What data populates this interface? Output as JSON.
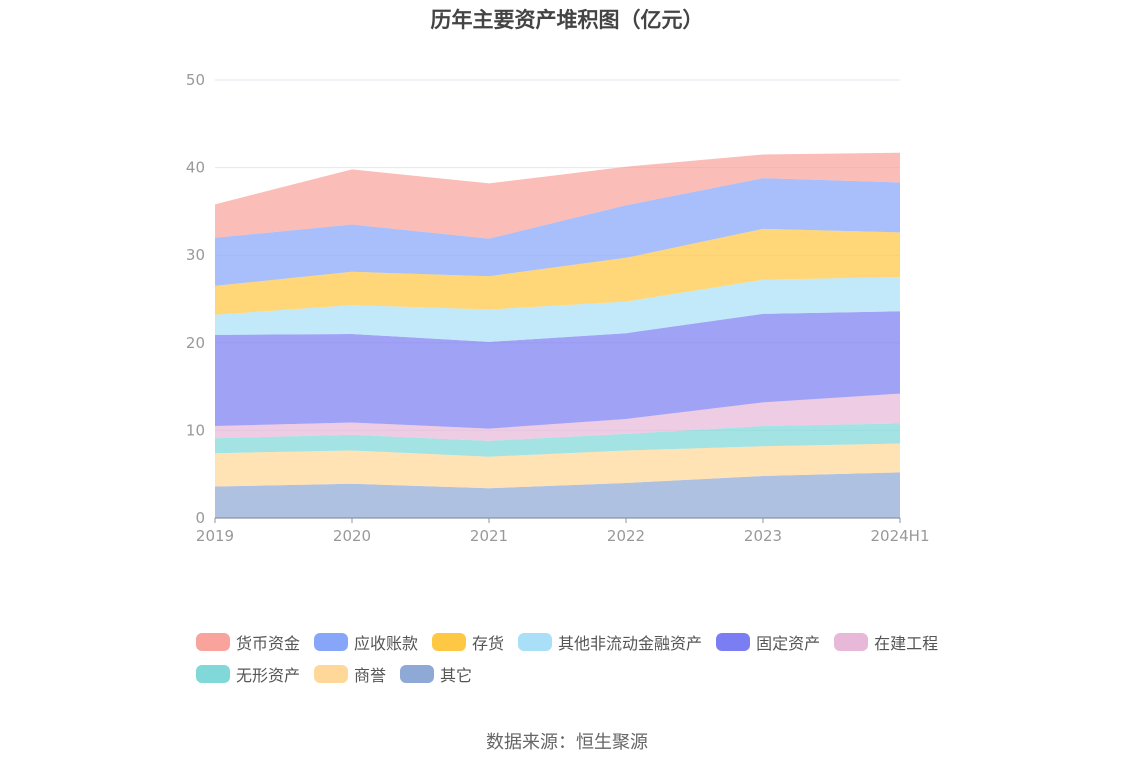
{
  "title": "历年主要资产堆积图（亿元）",
  "source": "数据来源：恒生聚源",
  "chart_data": {
    "type": "area",
    "stacked": true,
    "categories": [
      "2019",
      "2020",
      "2021",
      "2022",
      "2023",
      "2024H1"
    ],
    "ylim": [
      0,
      50
    ],
    "yticks": [
      0,
      10,
      20,
      30,
      40,
      50
    ],
    "grid": true,
    "legend_position": "bottom",
    "series": [
      {
        "name": "其它",
        "color": "#8fa9d6",
        "values": [
          3.6,
          3.9,
          3.4,
          4.0,
          4.8,
          5.2
        ]
      },
      {
        "name": "商誉",
        "color": "#ffd899",
        "values": [
          3.8,
          3.8,
          3.6,
          3.7,
          3.4,
          3.3
        ]
      },
      {
        "name": "无形资产",
        "color": "#80d8d8",
        "values": [
          1.7,
          1.8,
          1.8,
          1.9,
          2.3,
          2.3
        ]
      },
      {
        "name": "在建工程",
        "color": "#e8b8d8",
        "values": [
          1.4,
          1.4,
          1.4,
          1.7,
          2.7,
          3.4
        ]
      },
      {
        "name": "固定资产",
        "color": "#7b7ef2",
        "values": [
          10.4,
          10.1,
          9.9,
          9.8,
          10.1,
          9.4
        ]
      },
      {
        "name": "其他非流动金融资产",
        "color": "#a9e0f8",
        "values": [
          2.3,
          3.3,
          3.7,
          3.6,
          3.9,
          3.9
        ]
      },
      {
        "name": "存货",
        "color": "#ffc844",
        "values": [
          3.3,
          3.8,
          3.8,
          5.0,
          5.8,
          5.1
        ]
      },
      {
        "name": "应收账款",
        "color": "#88a6f9",
        "values": [
          5.5,
          5.4,
          4.3,
          6.0,
          5.8,
          5.7
        ]
      },
      {
        "name": "货币资金",
        "color": "#f8a39b",
        "values": [
          3.8,
          6.3,
          6.3,
          4.4,
          2.7,
          3.4
        ]
      }
    ]
  }
}
